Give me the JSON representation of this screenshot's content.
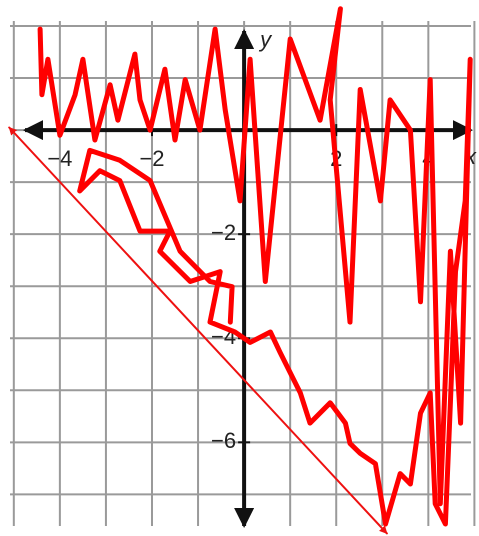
{
  "chart_data": {
    "type": "line",
    "x_label": "x",
    "y_label": "y",
    "xlim": [
      -5.3,
      5.1
    ],
    "ylim": [
      -7.8,
      2.5
    ],
    "xgrid": [
      -5,
      -4,
      -3,
      -2,
      -1,
      0,
      1,
      2,
      3,
      4,
      5
    ],
    "ygrid": [
      2,
      1,
      0,
      -1,
      -2,
      -3,
      -4,
      -5,
      -6,
      -7
    ],
    "xticks": [
      {
        "value": -4,
        "label": "−4"
      },
      {
        "value": -2,
        "label": "−2"
      },
      2,
      4
    ],
    "yticks": [
      {
        "value": -2,
        "label": "−2"
      },
      {
        "value": -4,
        "label": "−4"
      },
      {
        "value": -6,
        "label": "−6"
      }
    ],
    "grid": true,
    "series": [
      {
        "color": "#ee1111",
        "width": 2,
        "arrows": true,
        "x": [
          -5.1,
          3.1
        ],
        "values": [
          0.05,
          -7.75
        ]
      },
      {
        "color": "#ff0000",
        "width": 5,
        "arrows": false,
        "x": [
          -4.43,
          -4.39,
          -4.26,
          -4,
          -3.67,
          -3.5,
          -3.24,
          -2.91,
          -2.74,
          -2.37,
          -2.26,
          -2.04,
          -1.72,
          -1.5,
          -1.28,
          -0.96,
          -0.63,
          -0.41,
          -0.09,
          0.13,
          0.46,
          1,
          1.65,
          2.09,
          1.87,
          2.3,
          2.52,
          2.96,
          3.17,
          3.61,
          3.83,
          4.04,
          4.26,
          4.48,
          4.7,
          4.91,
          4.8,
          4.59,
          4.48,
          4.37,
          4.15,
          4.04,
          3.83,
          3.61,
          3.39,
          3.07,
          2.85,
          2.52,
          2.3,
          2.2,
          1.87,
          1.43,
          1.22,
          0.78,
          0.57,
          0.13,
          -0.2,
          -0.74,
          -0.52,
          -1.17,
          -1.83,
          -1.61,
          -2.26,
          -2.7,
          -3.13,
          -3.57,
          -3.35,
          -2.7,
          -2.04,
          -1.39,
          -0.74,
          -0.26,
          -0.3
        ],
        "values": [
          1.94,
          0.68,
          1.36,
          -0.1,
          0.68,
          1.36,
          -0.19,
          0.87,
          0.19,
          1.46,
          0.58,
          0,
          1.17,
          -0.19,
          0.97,
          0,
          1.94,
          0.39,
          -1.36,
          1.36,
          -2.91,
          1.75,
          0.19,
          2.33,
          0.58,
          -3.69,
          0.78,
          -1.36,
          0.58,
          0,
          -3.3,
          0.97,
          -7.18,
          -2.33,
          -5.63,
          1.36,
          -1.36,
          -2.72,
          -5.24,
          -7.57,
          -7.18,
          -5.05,
          -5.44,
          -6.8,
          -6.6,
          -7.57,
          -6.41,
          -6.21,
          -6.02,
          -5.63,
          -5.24,
          -5.63,
          -5.05,
          -4.27,
          -3.88,
          -4.08,
          -3.88,
          -3.69,
          -2.72,
          -2.91,
          -2.33,
          -1.94,
          -1.94,
          -0.97,
          -0.78,
          -1.17,
          -0.39,
          -0.58,
          -0.97,
          -2.33,
          -2.91,
          -3.01,
          -3.69
        ]
      }
    ]
  }
}
